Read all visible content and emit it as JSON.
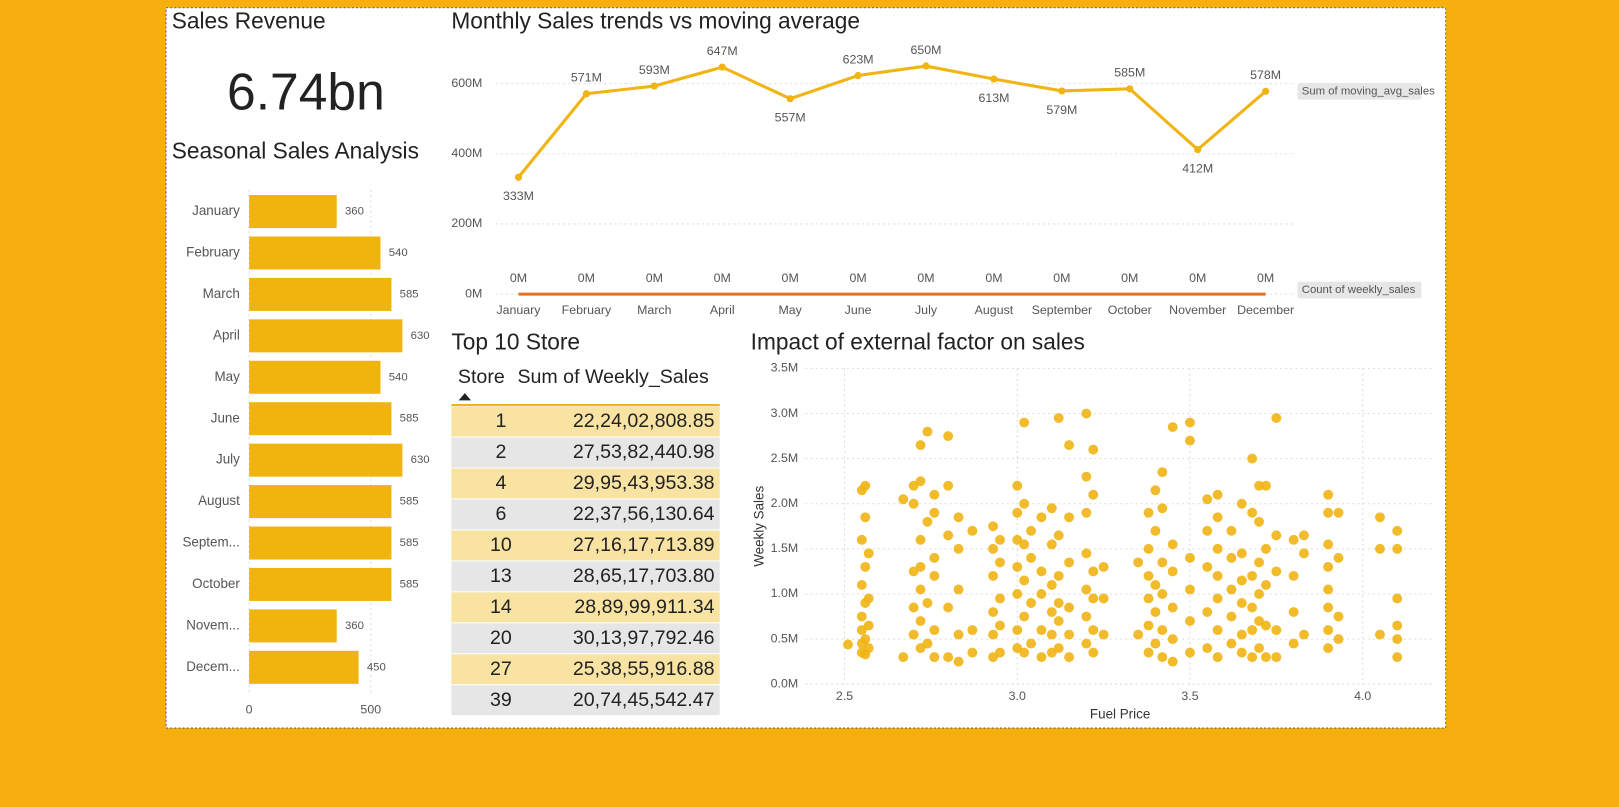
{
  "card": {
    "title": "Sales Revenue",
    "value": "6.74bn"
  },
  "chart_data": [
    {
      "type": "bar",
      "orientation": "horizontal",
      "title": "Seasonal Sales Analysis",
      "categories": [
        "January",
        "February",
        "March",
        "April",
        "May",
        "June",
        "July",
        "August",
        "Septem...",
        "October",
        "Novem...",
        "Decem..."
      ],
      "values": [
        360,
        540,
        585,
        630,
        540,
        585,
        630,
        585,
        585,
        585,
        360,
        450
      ],
      "color": "#F0B40F",
      "xlim": [
        0,
        700
      ],
      "xticks": [
        0,
        500
      ],
      "grid": true
    },
    {
      "type": "line",
      "title": "Monthly Sales trends vs moving average",
      "categories": [
        "January",
        "February",
        "March",
        "April",
        "May",
        "June",
        "July",
        "August",
        "September",
        "October",
        "November",
        "December"
      ],
      "series": [
        {
          "name": "Sum of moving_avg_sales",
          "color": "#F0B414",
          "values": [
            333000000,
            571000000,
            593000000,
            647000000,
            557000000,
            623000000,
            650000000,
            613000000,
            579000000,
            585000000,
            412000000,
            578000000
          ],
          "value_labels": [
            "333M",
            "571M",
            "593M",
            "647M",
            "557M",
            "623M",
            "650M",
            "613M",
            "579M",
            "585M",
            "412M",
            "578M"
          ]
        },
        {
          "name": "Count of weekly_sales",
          "color": "#E8711E",
          "values": [
            360,
            540,
            585,
            630,
            540,
            585,
            630,
            585,
            585,
            585,
            360,
            450
          ],
          "value_labels": [
            "0M",
            "0M",
            "0M",
            "0M",
            "0M",
            "0M",
            "0M",
            "0M",
            "0M",
            "0M",
            "0M",
            "0M"
          ]
        }
      ],
      "ylim": [
        0,
        660000000
      ],
      "yticks": [
        {
          "value": 0,
          "label": "0M"
        },
        {
          "value": 200000000,
          "label": "200M"
        },
        {
          "value": 400000000,
          "label": "400M"
        },
        {
          "value": 600000000,
          "label": "600M"
        }
      ],
      "grid": true
    },
    {
      "type": "scatter",
      "title": "Impact of external factor on sales",
      "x_label": "Fuel Price",
      "y_label": "Weekly Sales",
      "color": "#F0B414",
      "x": [
        2.51,
        2.55,
        2.55,
        2.55,
        2.55,
        2.55,
        2.55,
        2.55,
        2.56,
        2.56,
        2.56,
        2.56,
        2.56,
        2.56,
        2.57,
        2.57,
        2.57,
        2.57,
        2.67,
        2.67,
        2.7,
        2.7,
        2.7,
        2.7,
        2.7,
        2.72,
        2.72,
        2.72,
        2.72,
        2.72,
        2.72,
        2.72,
        2.74,
        2.74,
        2.74,
        2.74,
        2.76,
        2.76,
        2.76,
        2.76,
        2.76,
        2.76,
        2.8,
        2.8,
        2.8,
        2.8,
        2.8,
        2.83,
        2.83,
        2.83,
        2.83,
        2.83,
        2.87,
        2.87,
        2.87,
        2.93,
        2.93,
        2.93,
        2.93,
        2.93,
        2.93,
        2.95,
        2.95,
        2.95,
        2.95,
        2.95,
        3.0,
        3.0,
        3.0,
        3.0,
        3.0,
        3.0,
        3.0,
        3.02,
        3.02,
        3.02,
        3.02,
        3.02,
        3.02,
        3.04,
        3.04,
        3.04,
        3.04,
        3.07,
        3.07,
        3.07,
        3.07,
        3.07,
        3.1,
        3.1,
        3.1,
        3.1,
        3.1,
        3.1,
        3.12,
        3.12,
        3.12,
        3.12,
        3.12,
        3.12,
        3.15,
        3.15,
        3.15,
        3.15,
        3.15,
        3.15,
        3.2,
        3.2,
        3.2,
        3.2,
        3.2,
        3.2,
        3.2,
        3.22,
        3.22,
        3.22,
        3.22,
        3.22,
        3.22,
        3.25,
        3.25,
        3.25,
        3.35,
        3.35,
        3.38,
        3.38,
        3.38,
        3.38,
        3.38,
        3.38,
        3.4,
        3.4,
        3.4,
        3.4,
        3.4,
        3.42,
        3.42,
        3.42,
        3.42,
        3.42,
        3.42,
        3.45,
        3.45,
        3.45,
        3.45,
        3.45,
        3.45,
        3.5,
        3.5,
        3.5,
        3.5,
        3.5,
        3.5,
        3.55,
        3.55,
        3.55,
        3.55,
        3.55,
        3.58,
        3.58,
        3.58,
        3.58,
        3.58,
        3.58,
        3.58,
        3.62,
        3.62,
        3.62,
        3.62,
        3.62,
        3.65,
        3.65,
        3.65,
        3.65,
        3.65,
        3.65,
        3.68,
        3.68,
        3.68,
        3.68,
        3.68,
        3.68,
        3.7,
        3.7,
        3.7,
        3.7,
        3.7,
        3.7,
        3.72,
        3.72,
        3.72,
        3.72,
        3.72,
        3.75,
        3.75,
        3.75,
        3.75,
        3.75,
        3.8,
        3.8,
        3.8,
        3.8,
        3.83,
        3.83,
        3.83,
        3.9,
        3.9,
        3.9,
        3.9,
        3.9,
        3.9,
        3.9,
        3.9,
        3.93,
        3.93,
        3.93,
        3.93,
        4.05,
        4.05,
        4.05,
        4.1,
        4.1,
        4.1,
        4.1,
        4.1,
        4.1
      ],
      "values": [
        440000,
        450000,
        350000,
        600000,
        750000,
        1100000,
        1600000,
        2150000,
        330000,
        500000,
        900000,
        1300000,
        1850000,
        2200000,
        400000,
        650000,
        950000,
        1450000,
        300000,
        2050000,
        550000,
        850000,
        1250000,
        2000000,
        2200000,
        400000,
        700000,
        1050000,
        1300000,
        1600000,
        2250000,
        2650000,
        450000,
        900000,
        1800000,
        2800000,
        300000,
        600000,
        1200000,
        1400000,
        1900000,
        2100000,
        300000,
        850000,
        1650000,
        2200000,
        2750000,
        250000,
        550000,
        1050000,
        1500000,
        1850000,
        350000,
        600000,
        1700000,
        300000,
        550000,
        800000,
        1200000,
        1500000,
        1750000,
        350000,
        650000,
        950000,
        1350000,
        1600000,
        400000,
        600000,
        1000000,
        1300000,
        1600000,
        1900000,
        2200000,
        350000,
        750000,
        1150000,
        1550000,
        2000000,
        2900000,
        450000,
        900000,
        1400000,
        1700000,
        300000,
        600000,
        1000000,
        1250000,
        1850000,
        350000,
        550000,
        800000,
        1100000,
        1550000,
        1950000,
        400000,
        700000,
        900000,
        1200000,
        1650000,
        2950000,
        300000,
        550000,
        850000,
        1350000,
        1850000,
        2650000,
        450000,
        750000,
        1050000,
        1450000,
        1900000,
        2300000,
        3000000,
        350000,
        600000,
        950000,
        1250000,
        2100000,
        2600000,
        550000,
        950000,
        1300000,
        550000,
        1350000,
        350000,
        650000,
        950000,
        1200000,
        1500000,
        1900000,
        450000,
        800000,
        1100000,
        1700000,
        2150000,
        300000,
        600000,
        1000000,
        1350000,
        1950000,
        2350000,
        250000,
        500000,
        850000,
        1250000,
        1550000,
        2850000,
        350000,
        700000,
        1050000,
        1400000,
        2700000,
        2900000,
        400000,
        800000,
        1300000,
        1700000,
        2050000,
        300000,
        600000,
        950000,
        1200000,
        1500000,
        1850000,
        2100000,
        450000,
        750000,
        1050000,
        1400000,
        1700000,
        350000,
        550000,
        900000,
        1150000,
        1450000,
        2000000,
        300000,
        600000,
        850000,
        1200000,
        1900000,
        2500000,
        400000,
        700000,
        1000000,
        1350000,
        1800000,
        2200000,
        300000,
        650000,
        1100000,
        1500000,
        2200000,
        300000,
        600000,
        1250000,
        1650000,
        2950000,
        450000,
        800000,
        1200000,
        1600000,
        550000,
        1450000,
        1650000,
        400000,
        600000,
        850000,
        1050000,
        1300000,
        1550000,
        1900000,
        2100000,
        500000,
        750000,
        1400000,
        1900000,
        550000,
        1500000,
        1850000,
        300000,
        500000,
        650000,
        950000,
        1500000,
        1700000
      ],
      "xlim": [
        2.35,
        4.2
      ],
      "xticks": [
        2.5,
        {
          "value": 3,
          "label": "3.0"
        },
        3.5,
        {
          "value": 4,
          "label": "4.0"
        }
      ],
      "ylim": [
        0,
        3500000
      ],
      "yticks": [
        {
          "value": 0,
          "label": "0.0M"
        },
        {
          "value": 500000,
          "label": "0.5M"
        },
        {
          "value": 1000000,
          "label": "1.0M"
        },
        {
          "value": 1500000,
          "label": "1.5M"
        },
        {
          "value": 2000000,
          "label": "2.0M"
        },
        {
          "value": 2500000,
          "label": "2.5M"
        },
        {
          "value": 3000000,
          "label": "3.0M"
        },
        {
          "value": 3500000,
          "label": "3.5M"
        }
      ],
      "grid": true
    }
  ],
  "table": {
    "title": "Top 10 Store",
    "columns": [
      "Store",
      "Sum of Weekly_Sales"
    ],
    "rows": [
      [
        "1",
        "22,24,02,808.85"
      ],
      [
        "2",
        "27,53,82,440.98"
      ],
      [
        "4",
        "29,95,43,953.38"
      ],
      [
        "6",
        "22,37,56,130.64"
      ],
      [
        "10",
        "27,16,17,713.89"
      ],
      [
        "13",
        "28,65,17,703.80"
      ],
      [
        "14",
        "28,89,99,911.34"
      ],
      [
        "20",
        "30,13,97,792.46"
      ],
      [
        "27",
        "25,38,55,916.88"
      ],
      [
        "39",
        "20,74,45,542.47"
      ]
    ]
  }
}
